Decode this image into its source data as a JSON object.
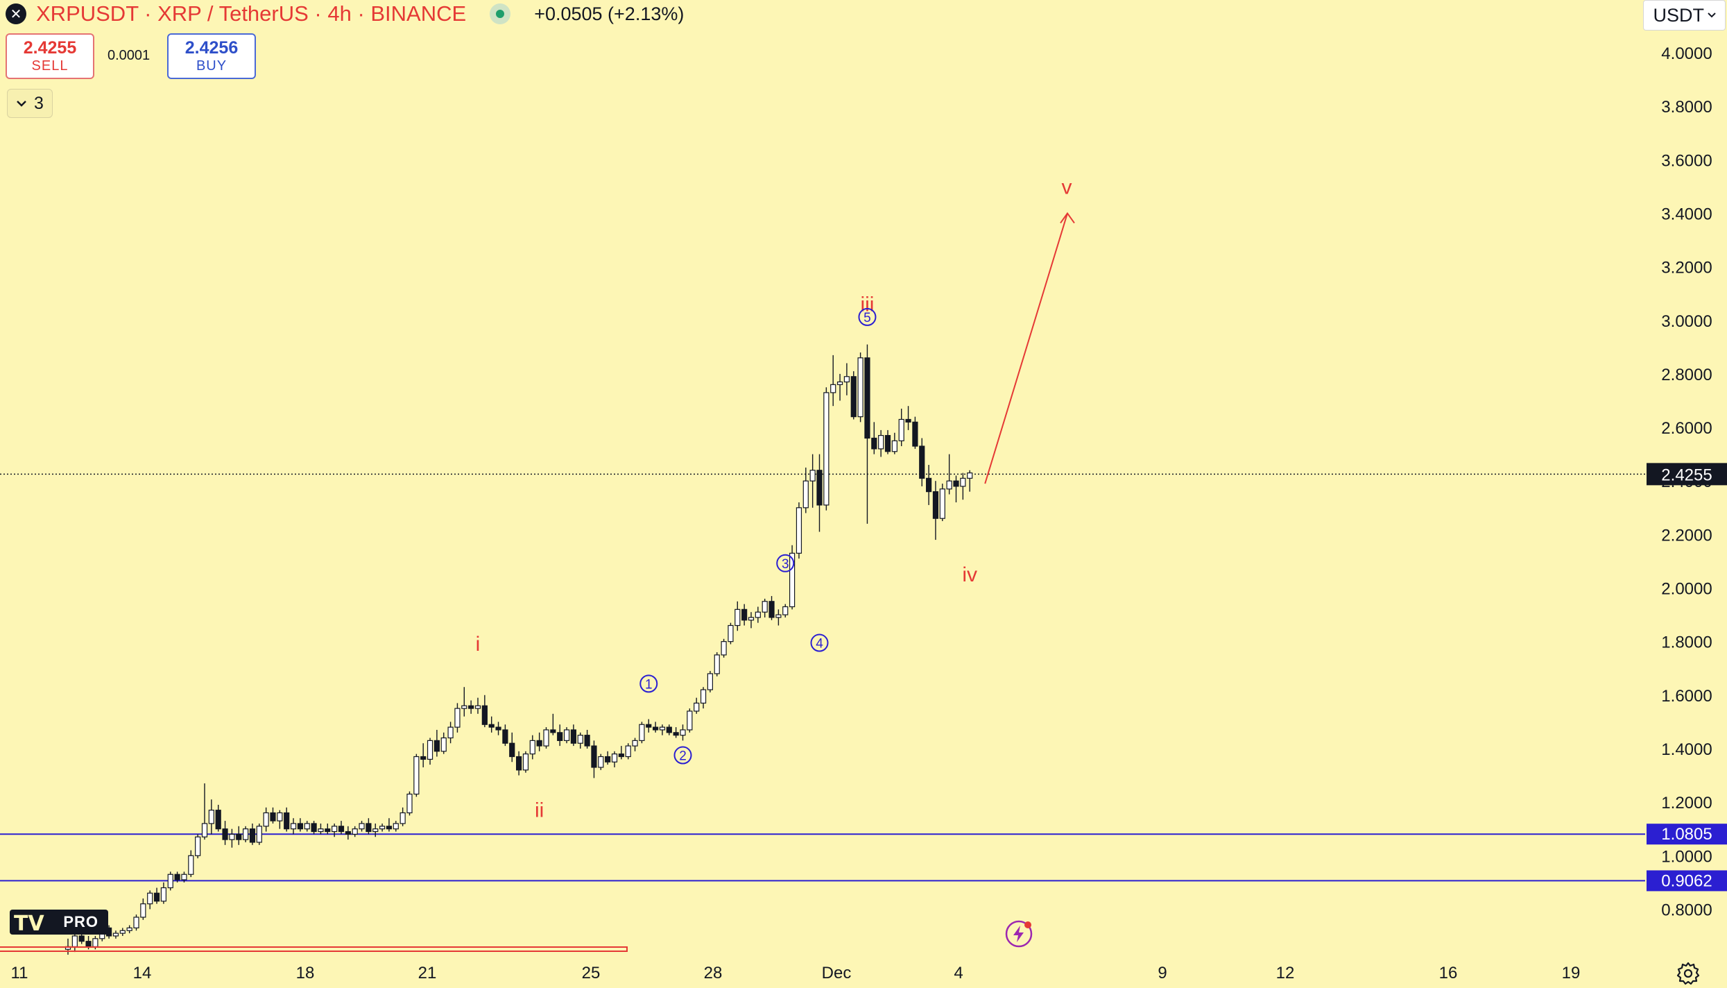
{
  "header": {
    "symbol_title": "XRPUSDT · XRP / TetherUS · 4h · BINANCE",
    "change": "+0.0505 (+2.13%)",
    "currency": "USDT"
  },
  "trade": {
    "sell_price": "2.4255",
    "sell_label": "SELL",
    "spread": "0.0001",
    "buy_price": "2.4256",
    "buy_label": "BUY"
  },
  "indicators_toggle": {
    "count": "3"
  },
  "branding": {
    "logo_text": "PRO"
  },
  "colors": {
    "background": "#fdf6b5",
    "bull_candle": "#ffffff",
    "bear_candle": "#131722",
    "annotation_red": "#e53935",
    "wave_blue": "#2b1fd1",
    "level_line": "#2b1fd1"
  },
  "chart_data": {
    "type": "candlestick",
    "instrument": "XRPUSDT",
    "timeframe": "4h",
    "x_tick_labels": [
      "11",
      "14",
      "18",
      "21",
      "25",
      "28",
      "Dec",
      "4",
      "9",
      "12",
      "16",
      "19"
    ],
    "y_tick_labels": [
      "4.0000",
      "3.8000",
      "3.6000",
      "3.4000",
      "3.2000",
      "3.0000",
      "2.8000",
      "2.6000",
      "2.4000",
      "2.2000",
      "2.0000",
      "1.8000",
      "1.6000",
      "1.4000",
      "1.2000",
      "1.0000",
      "0.8000"
    ],
    "ylim": [
      0.68,
      4.2
    ],
    "y_scale": "linear",
    "grid": false,
    "current_price": {
      "value": 2.4255,
      "label": "2.4255"
    },
    "horizontal_levels": [
      {
        "value": 1.0805,
        "label": "1.0805"
      },
      {
        "value": 0.9062,
        "label": "0.9062"
      }
    ],
    "candles": [
      {
        "o": 0.65,
        "h": 0.69,
        "l": 0.63,
        "c": 0.66
      },
      {
        "o": 0.66,
        "h": 0.71,
        "l": 0.64,
        "c": 0.7
      },
      {
        "o": 0.7,
        "h": 0.72,
        "l": 0.67,
        "c": 0.68
      },
      {
        "o": 0.68,
        "h": 0.7,
        "l": 0.65,
        "c": 0.66
      },
      {
        "o": 0.66,
        "h": 0.7,
        "l": 0.65,
        "c": 0.69
      },
      {
        "o": 0.69,
        "h": 0.74,
        "l": 0.68,
        "c": 0.73
      },
      {
        "o": 0.73,
        "h": 0.74,
        "l": 0.69,
        "c": 0.7
      },
      {
        "o": 0.7,
        "h": 0.72,
        "l": 0.69,
        "c": 0.71
      },
      {
        "o": 0.71,
        "h": 0.73,
        "l": 0.7,
        "c": 0.72
      },
      {
        "o": 0.72,
        "h": 0.74,
        "l": 0.71,
        "c": 0.73
      },
      {
        "o": 0.73,
        "h": 0.78,
        "l": 0.72,
        "c": 0.77
      },
      {
        "o": 0.77,
        "h": 0.84,
        "l": 0.76,
        "c": 0.82
      },
      {
        "o": 0.82,
        "h": 0.87,
        "l": 0.8,
        "c": 0.86
      },
      {
        "o": 0.86,
        "h": 0.88,
        "l": 0.82,
        "c": 0.83
      },
      {
        "o": 0.83,
        "h": 0.9,
        "l": 0.82,
        "c": 0.88
      },
      {
        "o": 0.88,
        "h": 0.94,
        "l": 0.87,
        "c": 0.93
      },
      {
        "o": 0.93,
        "h": 0.94,
        "l": 0.9,
        "c": 0.91
      },
      {
        "o": 0.91,
        "h": 0.94,
        "l": 0.9,
        "c": 0.93
      },
      {
        "o": 0.93,
        "h": 1.02,
        "l": 0.92,
        "c": 1.0
      },
      {
        "o": 1.0,
        "h": 1.08,
        "l": 0.99,
        "c": 1.07
      },
      {
        "o": 1.07,
        "h": 1.27,
        "l": 1.06,
        "c": 1.12
      },
      {
        "o": 1.12,
        "h": 1.21,
        "l": 1.08,
        "c": 1.17
      },
      {
        "o": 1.17,
        "h": 1.19,
        "l": 1.09,
        "c": 1.1
      },
      {
        "o": 1.1,
        "h": 1.13,
        "l": 1.04,
        "c": 1.06
      },
      {
        "o": 1.06,
        "h": 1.1,
        "l": 1.03,
        "c": 1.08
      },
      {
        "o": 1.08,
        "h": 1.11,
        "l": 1.04,
        "c": 1.06
      },
      {
        "o": 1.06,
        "h": 1.11,
        "l": 1.05,
        "c": 1.1
      },
      {
        "o": 1.1,
        "h": 1.12,
        "l": 1.04,
        "c": 1.05
      },
      {
        "o": 1.05,
        "h": 1.12,
        "l": 1.04,
        "c": 1.11
      },
      {
        "o": 1.11,
        "h": 1.18,
        "l": 1.09,
        "c": 1.16
      },
      {
        "o": 1.16,
        "h": 1.18,
        "l": 1.12,
        "c": 1.13
      },
      {
        "o": 1.13,
        "h": 1.17,
        "l": 1.1,
        "c": 1.16
      },
      {
        "o": 1.16,
        "h": 1.18,
        "l": 1.09,
        "c": 1.1
      },
      {
        "o": 1.1,
        "h": 1.14,
        "l": 1.08,
        "c": 1.12
      },
      {
        "o": 1.12,
        "h": 1.14,
        "l": 1.09,
        "c": 1.1
      },
      {
        "o": 1.1,
        "h": 1.13,
        "l": 1.09,
        "c": 1.12
      },
      {
        "o": 1.12,
        "h": 1.13,
        "l": 1.08,
        "c": 1.09
      },
      {
        "o": 1.09,
        "h": 1.12,
        "l": 1.08,
        "c": 1.1
      },
      {
        "o": 1.1,
        "h": 1.12,
        "l": 1.08,
        "c": 1.09
      },
      {
        "o": 1.09,
        "h": 1.12,
        "l": 1.07,
        "c": 1.11
      },
      {
        "o": 1.11,
        "h": 1.13,
        "l": 1.08,
        "c": 1.09
      },
      {
        "o": 1.09,
        "h": 1.11,
        "l": 1.06,
        "c": 1.08
      },
      {
        "o": 1.08,
        "h": 1.11,
        "l": 1.07,
        "c": 1.1
      },
      {
        "o": 1.1,
        "h": 1.13,
        "l": 1.09,
        "c": 1.12
      },
      {
        "o": 1.12,
        "h": 1.14,
        "l": 1.08,
        "c": 1.09
      },
      {
        "o": 1.09,
        "h": 1.12,
        "l": 1.07,
        "c": 1.1
      },
      {
        "o": 1.1,
        "h": 1.12,
        "l": 1.09,
        "c": 1.11
      },
      {
        "o": 1.11,
        "h": 1.14,
        "l": 1.09,
        "c": 1.1
      },
      {
        "o": 1.1,
        "h": 1.13,
        "l": 1.09,
        "c": 1.12
      },
      {
        "o": 1.12,
        "h": 1.18,
        "l": 1.11,
        "c": 1.16
      },
      {
        "o": 1.16,
        "h": 1.24,
        "l": 1.15,
        "c": 1.23
      },
      {
        "o": 1.23,
        "h": 1.38,
        "l": 1.22,
        "c": 1.37
      },
      {
        "o": 1.37,
        "h": 1.42,
        "l": 1.33,
        "c": 1.36
      },
      {
        "o": 1.36,
        "h": 1.44,
        "l": 1.34,
        "c": 1.43
      },
      {
        "o": 1.43,
        "h": 1.47,
        "l": 1.37,
        "c": 1.39
      },
      {
        "o": 1.39,
        "h": 1.46,
        "l": 1.38,
        "c": 1.44
      },
      {
        "o": 1.44,
        "h": 1.5,
        "l": 1.42,
        "c": 1.48
      },
      {
        "o": 1.48,
        "h": 1.57,
        "l": 1.46,
        "c": 1.55
      },
      {
        "o": 1.55,
        "h": 1.63,
        "l": 1.52,
        "c": 1.56
      },
      {
        "o": 1.56,
        "h": 1.58,
        "l": 1.53,
        "c": 1.55
      },
      {
        "o": 1.55,
        "h": 1.59,
        "l": 1.53,
        "c": 1.56
      },
      {
        "o": 1.56,
        "h": 1.6,
        "l": 1.48,
        "c": 1.49
      },
      {
        "o": 1.49,
        "h": 1.52,
        "l": 1.46,
        "c": 1.48
      },
      {
        "o": 1.48,
        "h": 1.5,
        "l": 1.45,
        "c": 1.47
      },
      {
        "o": 1.47,
        "h": 1.49,
        "l": 1.41,
        "c": 1.42
      },
      {
        "o": 1.42,
        "h": 1.46,
        "l": 1.35,
        "c": 1.37
      },
      {
        "o": 1.37,
        "h": 1.39,
        "l": 1.3,
        "c": 1.32
      },
      {
        "o": 1.32,
        "h": 1.39,
        "l": 1.31,
        "c": 1.38
      },
      {
        "o": 1.38,
        "h": 1.45,
        "l": 1.36,
        "c": 1.43
      },
      {
        "o": 1.43,
        "h": 1.46,
        "l": 1.39,
        "c": 1.41
      },
      {
        "o": 1.41,
        "h": 1.48,
        "l": 1.4,
        "c": 1.47
      },
      {
        "o": 1.47,
        "h": 1.53,
        "l": 1.45,
        "c": 1.46
      },
      {
        "o": 1.46,
        "h": 1.49,
        "l": 1.41,
        "c": 1.43
      },
      {
        "o": 1.43,
        "h": 1.48,
        "l": 1.42,
        "c": 1.47
      },
      {
        "o": 1.47,
        "h": 1.49,
        "l": 1.41,
        "c": 1.42
      },
      {
        "o": 1.42,
        "h": 1.46,
        "l": 1.4,
        "c": 1.45
      },
      {
        "o": 1.45,
        "h": 1.47,
        "l": 1.4,
        "c": 1.41
      },
      {
        "o": 1.41,
        "h": 1.43,
        "l": 1.29,
        "c": 1.33
      },
      {
        "o": 1.33,
        "h": 1.38,
        "l": 1.32,
        "c": 1.37
      },
      {
        "o": 1.37,
        "h": 1.39,
        "l": 1.34,
        "c": 1.35
      },
      {
        "o": 1.35,
        "h": 1.39,
        "l": 1.33,
        "c": 1.38
      },
      {
        "o": 1.38,
        "h": 1.41,
        "l": 1.36,
        "c": 1.37
      },
      {
        "o": 1.37,
        "h": 1.42,
        "l": 1.36,
        "c": 1.41
      },
      {
        "o": 1.41,
        "h": 1.44,
        "l": 1.39,
        "c": 1.43
      },
      {
        "o": 1.43,
        "h": 1.5,
        "l": 1.42,
        "c": 1.49
      },
      {
        "o": 1.49,
        "h": 1.51,
        "l": 1.46,
        "c": 1.48
      },
      {
        "o": 1.48,
        "h": 1.5,
        "l": 1.46,
        "c": 1.47
      },
      {
        "o": 1.47,
        "h": 1.49,
        "l": 1.45,
        "c": 1.48
      },
      {
        "o": 1.48,
        "h": 1.49,
        "l": 1.45,
        "c": 1.46
      },
      {
        "o": 1.46,
        "h": 1.48,
        "l": 1.44,
        "c": 1.45
      },
      {
        "o": 1.45,
        "h": 1.49,
        "l": 1.43,
        "c": 1.47
      },
      {
        "o": 1.47,
        "h": 1.55,
        "l": 1.46,
        "c": 1.54
      },
      {
        "o": 1.54,
        "h": 1.59,
        "l": 1.53,
        "c": 1.57
      },
      {
        "o": 1.57,
        "h": 1.63,
        "l": 1.55,
        "c": 1.62
      },
      {
        "o": 1.62,
        "h": 1.69,
        "l": 1.61,
        "c": 1.68
      },
      {
        "o": 1.68,
        "h": 1.76,
        "l": 1.67,
        "c": 1.75
      },
      {
        "o": 1.75,
        "h": 1.81,
        "l": 1.74,
        "c": 1.8
      },
      {
        "o": 1.8,
        "h": 1.87,
        "l": 1.79,
        "c": 1.86
      },
      {
        "o": 1.86,
        "h": 1.95,
        "l": 1.84,
        "c": 1.92
      },
      {
        "o": 1.92,
        "h": 1.94,
        "l": 1.86,
        "c": 1.88
      },
      {
        "o": 1.88,
        "h": 1.91,
        "l": 1.85,
        "c": 1.89
      },
      {
        "o": 1.89,
        "h": 1.93,
        "l": 1.87,
        "c": 1.91
      },
      {
        "o": 1.91,
        "h": 1.96,
        "l": 1.89,
        "c": 1.95
      },
      {
        "o": 1.95,
        "h": 1.97,
        "l": 1.88,
        "c": 1.89
      },
      {
        "o": 1.89,
        "h": 1.92,
        "l": 1.86,
        "c": 1.9
      },
      {
        "o": 1.9,
        "h": 1.94,
        "l": 1.89,
        "c": 1.93
      },
      {
        "o": 1.93,
        "h": 2.16,
        "l": 1.92,
        "c": 2.13
      },
      {
        "o": 2.13,
        "h": 2.32,
        "l": 2.11,
        "c": 2.3
      },
      {
        "o": 2.3,
        "h": 2.45,
        "l": 2.28,
        "c": 2.4
      },
      {
        "o": 2.4,
        "h": 2.5,
        "l": 2.3,
        "c": 2.44
      },
      {
        "o": 2.44,
        "h": 2.5,
        "l": 2.21,
        "c": 2.31
      },
      {
        "o": 2.31,
        "h": 2.75,
        "l": 2.29,
        "c": 2.73
      },
      {
        "o": 2.73,
        "h": 2.87,
        "l": 2.68,
        "c": 2.76
      },
      {
        "o": 2.76,
        "h": 2.8,
        "l": 2.7,
        "c": 2.77
      },
      {
        "o": 2.77,
        "h": 2.84,
        "l": 2.72,
        "c": 2.79
      },
      {
        "o": 2.79,
        "h": 2.81,
        "l": 2.63,
        "c": 2.64
      },
      {
        "o": 2.64,
        "h": 2.88,
        "l": 2.62,
        "c": 2.86
      },
      {
        "o": 2.86,
        "h": 2.91,
        "l": 2.24,
        "c": 2.56
      },
      {
        "o": 2.56,
        "h": 2.62,
        "l": 2.5,
        "c": 2.52
      },
      {
        "o": 2.52,
        "h": 2.59,
        "l": 2.49,
        "c": 2.57
      },
      {
        "o": 2.57,
        "h": 2.59,
        "l": 2.5,
        "c": 2.51
      },
      {
        "o": 2.51,
        "h": 2.58,
        "l": 2.5,
        "c": 2.55
      },
      {
        "o": 2.55,
        "h": 2.67,
        "l": 2.53,
        "c": 2.63
      },
      {
        "o": 2.63,
        "h": 2.68,
        "l": 2.59,
        "c": 2.62
      },
      {
        "o": 2.62,
        "h": 2.64,
        "l": 2.52,
        "c": 2.53
      },
      {
        "o": 2.53,
        "h": 2.56,
        "l": 2.38,
        "c": 2.41
      },
      {
        "o": 2.41,
        "h": 2.46,
        "l": 2.31,
        "c": 2.36
      },
      {
        "o": 2.36,
        "h": 2.4,
        "l": 2.18,
        "c": 2.26
      },
      {
        "o": 2.26,
        "h": 2.39,
        "l": 2.25,
        "c": 2.37
      },
      {
        "o": 2.37,
        "h": 2.5,
        "l": 2.35,
        "c": 2.4
      },
      {
        "o": 2.4,
        "h": 2.42,
        "l": 2.32,
        "c": 2.38
      },
      {
        "o": 2.38,
        "h": 2.43,
        "l": 2.33,
        "c": 2.41
      },
      {
        "o": 2.41,
        "h": 2.44,
        "l": 2.36,
        "c": 2.43
      }
    ],
    "annotations": [
      {
        "label": "i",
        "color": "red",
        "anchor": "above",
        "at_candle": 60,
        "price": 1.63
      },
      {
        "label": "ii",
        "color": "red",
        "anchor": "below",
        "at_candle": 69,
        "price": 1.3
      },
      {
        "label": "iii",
        "color": "red",
        "anchor": "above",
        "at_candle": 117,
        "price": 2.9
      },
      {
        "label": "iv",
        "color": "red",
        "anchor": "below",
        "at_candle": 132,
        "price": 2.18
      },
      {
        "label": "v",
        "color": "red",
        "anchor": "target",
        "price": 3.38
      },
      {
        "label": "1",
        "color": "blue",
        "circled": true,
        "at_candle": 85,
        "price": 1.5
      },
      {
        "label": "2",
        "color": "blue",
        "circled": true,
        "at_candle": 90,
        "price": 1.44
      },
      {
        "label": "3",
        "color": "blue",
        "circled": true,
        "at_candle": 105,
        "price": 1.95
      },
      {
        "label": "4",
        "color": "blue",
        "circled": true,
        "at_candle": 110,
        "price": 1.86
      },
      {
        "label": "5",
        "color": "blue",
        "circled": true,
        "at_candle": 117,
        "price": 2.87
      }
    ],
    "projection": {
      "from_price": 2.39,
      "to_price": 3.4,
      "color": "red",
      "arrow": true
    }
  }
}
